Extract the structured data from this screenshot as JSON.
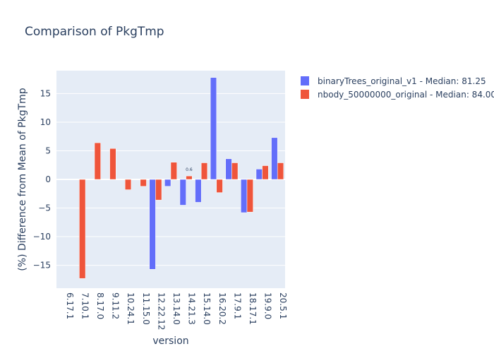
{
  "chart_data": {
    "type": "bar",
    "title": "Comparison of PkgTmp",
    "xlabel": "version",
    "ylabel": "(%) Difference from Mean of PkgTmp",
    "categories": [
      "6.17.1",
      "7.10.1",
      "8.17.0",
      "9.11.2",
      "10.24.1",
      "11.15.0",
      "12.22.12",
      "13.14.0",
      "14.21.3",
      "15.14.0",
      "16.20.2",
      "17.9.1",
      "18.17.1",
      "19.9.0",
      "20.5.1"
    ],
    "ylim": [
      -19,
      19
    ],
    "yticks": [
      -15,
      -10,
      -5,
      0,
      5,
      10,
      15
    ],
    "grid": true,
    "legend_position": "top-right",
    "series": [
      {
        "name": "binaryTrees_original_v1 - Median: 81.25",
        "color": "#636efa",
        "values": [
          0,
          0,
          0,
          0,
          0,
          0,
          -15.7,
          -1.2,
          -4.5,
          -4.0,
          17.8,
          3.6,
          -5.8,
          1.8,
          7.3
        ]
      },
      {
        "name": "nbody_50000000_original - Median: 84.00",
        "color": "#ef553b",
        "values": [
          0,
          -17.3,
          6.4,
          5.4,
          -1.8,
          -1.2,
          -3.6,
          3.0,
          0.6,
          2.9,
          -2.3,
          2.9,
          -5.7,
          2.4,
          2.9
        ]
      }
    ],
    "annotations": [
      {
        "text": "0.6",
        "category": "14.21.3",
        "series": 1
      }
    ]
  }
}
